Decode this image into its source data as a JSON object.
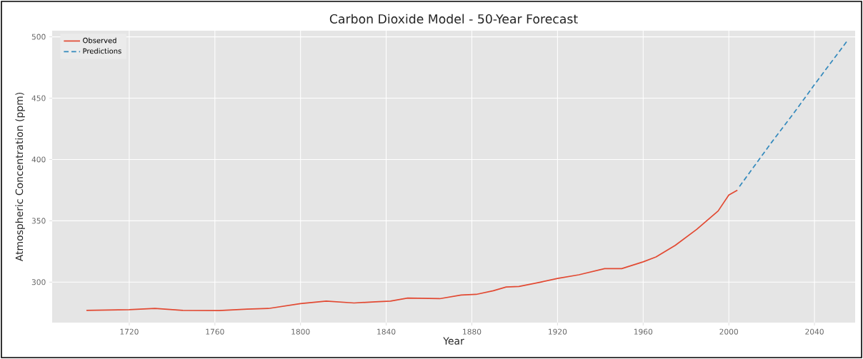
{
  "chart_data": {
    "type": "line",
    "title": "Carbon Dioxide Model - 50-Year Forecast",
    "xlabel": "Year",
    "ylabel": "Atmospheric Concentration (ppm)",
    "xlim": [
      1684,
      2059
    ],
    "ylim": [
      267,
      505
    ],
    "xticks": [
      1720,
      1760,
      1800,
      1840,
      1880,
      1920,
      1960,
      2000,
      2040
    ],
    "yticks": [
      300,
      350,
      400,
      450,
      500
    ],
    "grid": true,
    "legend": "top left",
    "series": [
      {
        "name": "Observed",
        "color": "#e24a33",
        "line_style": "solid",
        "x": [
          1700,
          1720,
          1732,
          1745,
          1762,
          1775,
          1785,
          1800,
          1812,
          1825,
          1835,
          1842,
          1850,
          1865,
          1875,
          1882,
          1890,
          1896,
          1902,
          1912,
          1920,
          1930,
          1942,
          1950,
          1960,
          1966,
          1975,
          1985,
          1995,
          2000,
          2004
        ],
        "values": [
          277,
          277.5,
          278.5,
          277,
          276.8,
          278,
          278.5,
          282.5,
          284.5,
          283,
          284,
          284.5,
          287,
          286.5,
          289.5,
          290,
          293,
          296,
          296.5,
          300,
          303,
          306,
          311,
          311,
          316.5,
          320.5,
          330,
          343,
          358,
          371,
          375
        ]
      },
      {
        "name": "Predictions",
        "color": "#348abd",
        "line_style": "dashed",
        "x": [
          2005,
          2020,
          2030,
          2040,
          2055
        ],
        "values": [
          378,
          414,
          437,
          461,
          496
        ]
      }
    ]
  }
}
